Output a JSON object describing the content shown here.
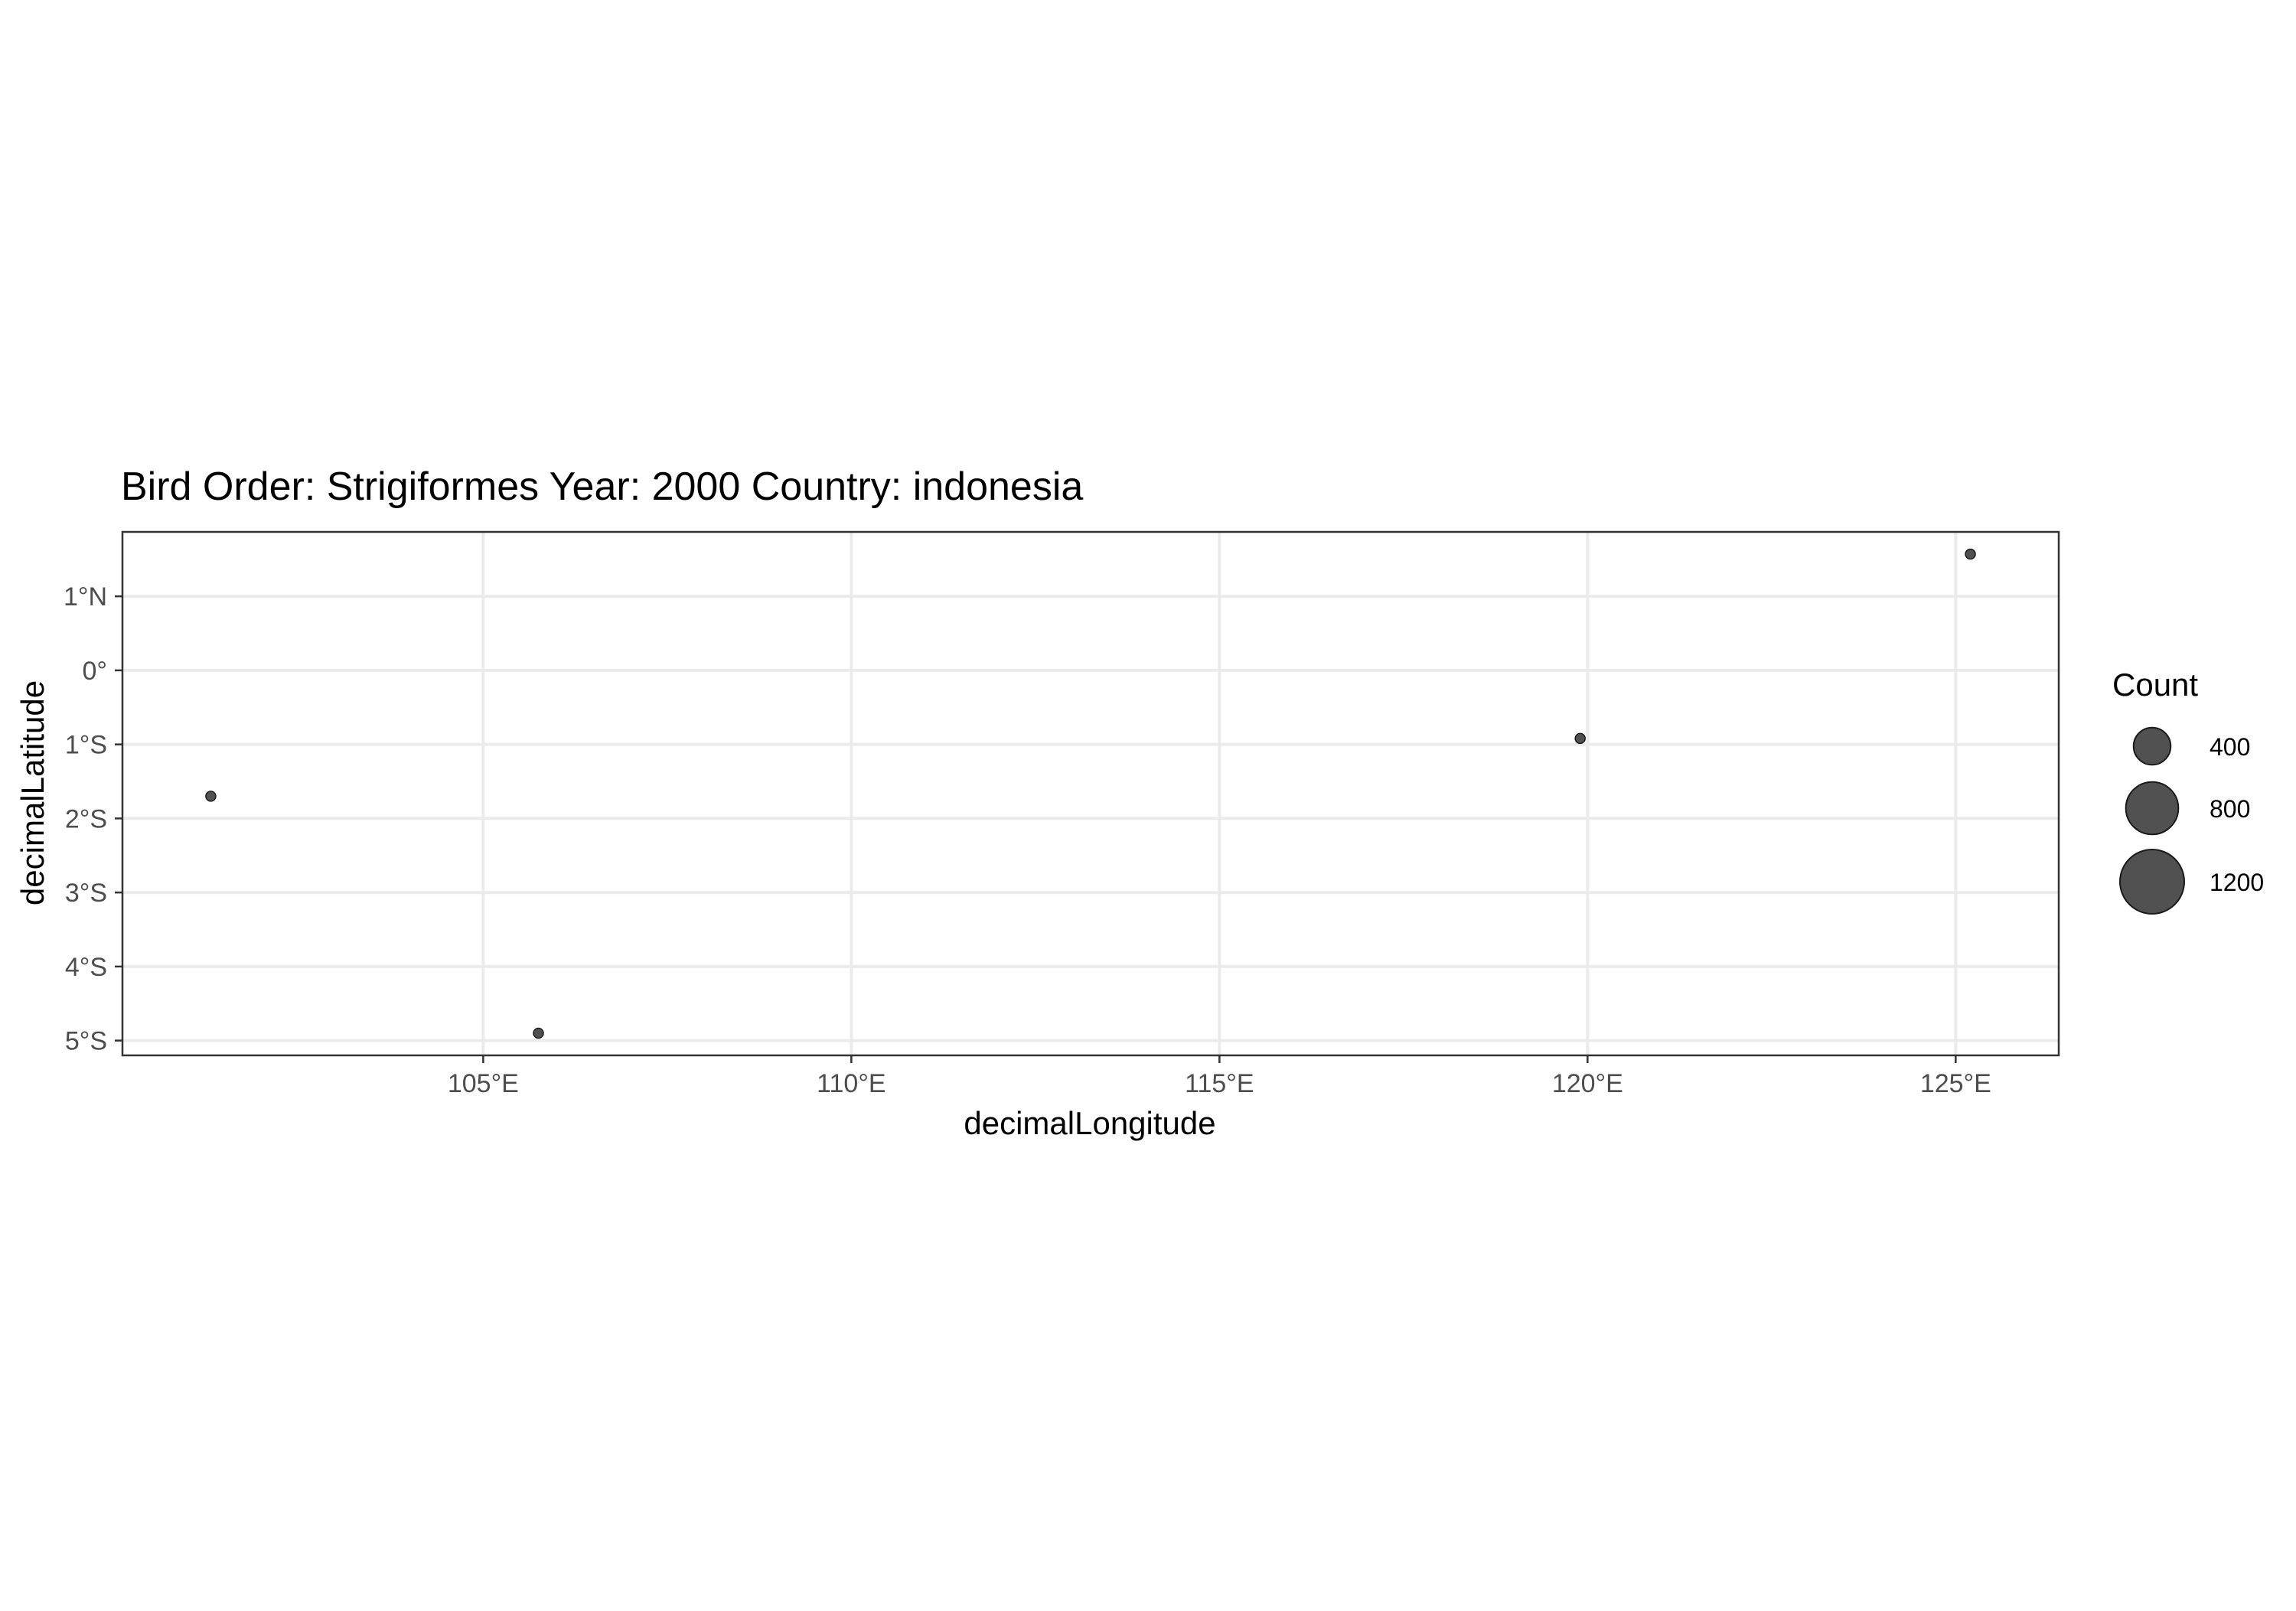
{
  "chart_data": {
    "type": "scatter",
    "title": "Bird Order: Strigiformes Year: 2000 Country: indonesia",
    "xlabel": "decimalLongitude",
    "ylabel": "decimalLatitude",
    "xlim": [
      100.1,
      126.4
    ],
    "ylim": [
      -5.2,
      1.87
    ],
    "x_ticks": [
      105,
      110,
      115,
      120,
      125
    ],
    "x_tick_labels": [
      "105°E",
      "110°E",
      "115°E",
      "120°E",
      "125°E"
    ],
    "y_ticks": [
      1,
      0,
      -1,
      -2,
      -3,
      -4,
      -5
    ],
    "y_tick_labels": [
      "1°N",
      "0°",
      "1°S",
      "2°S",
      "3°S",
      "4°S",
      "5°S"
    ],
    "grid": true,
    "legend": {
      "title": "Count",
      "placement": "right",
      "entries": [
        {
          "label": "400",
          "value": 400
        },
        {
          "label": "800",
          "value": 800
        },
        {
          "label": "1200",
          "value": 1200
        }
      ]
    },
    "points": [
      {
        "x": 101.3,
        "y": -1.7,
        "count": 1
      },
      {
        "x": 105.75,
        "y": -4.9,
        "count": 1
      },
      {
        "x": 119.9,
        "y": -0.92,
        "count": 1
      },
      {
        "x": 125.2,
        "y": 1.57,
        "count": 1
      }
    ],
    "point_color": "#333333",
    "point_alpha": 0.85,
    "grid_color": "#ebebeb",
    "panel_border_color": "#333333"
  }
}
